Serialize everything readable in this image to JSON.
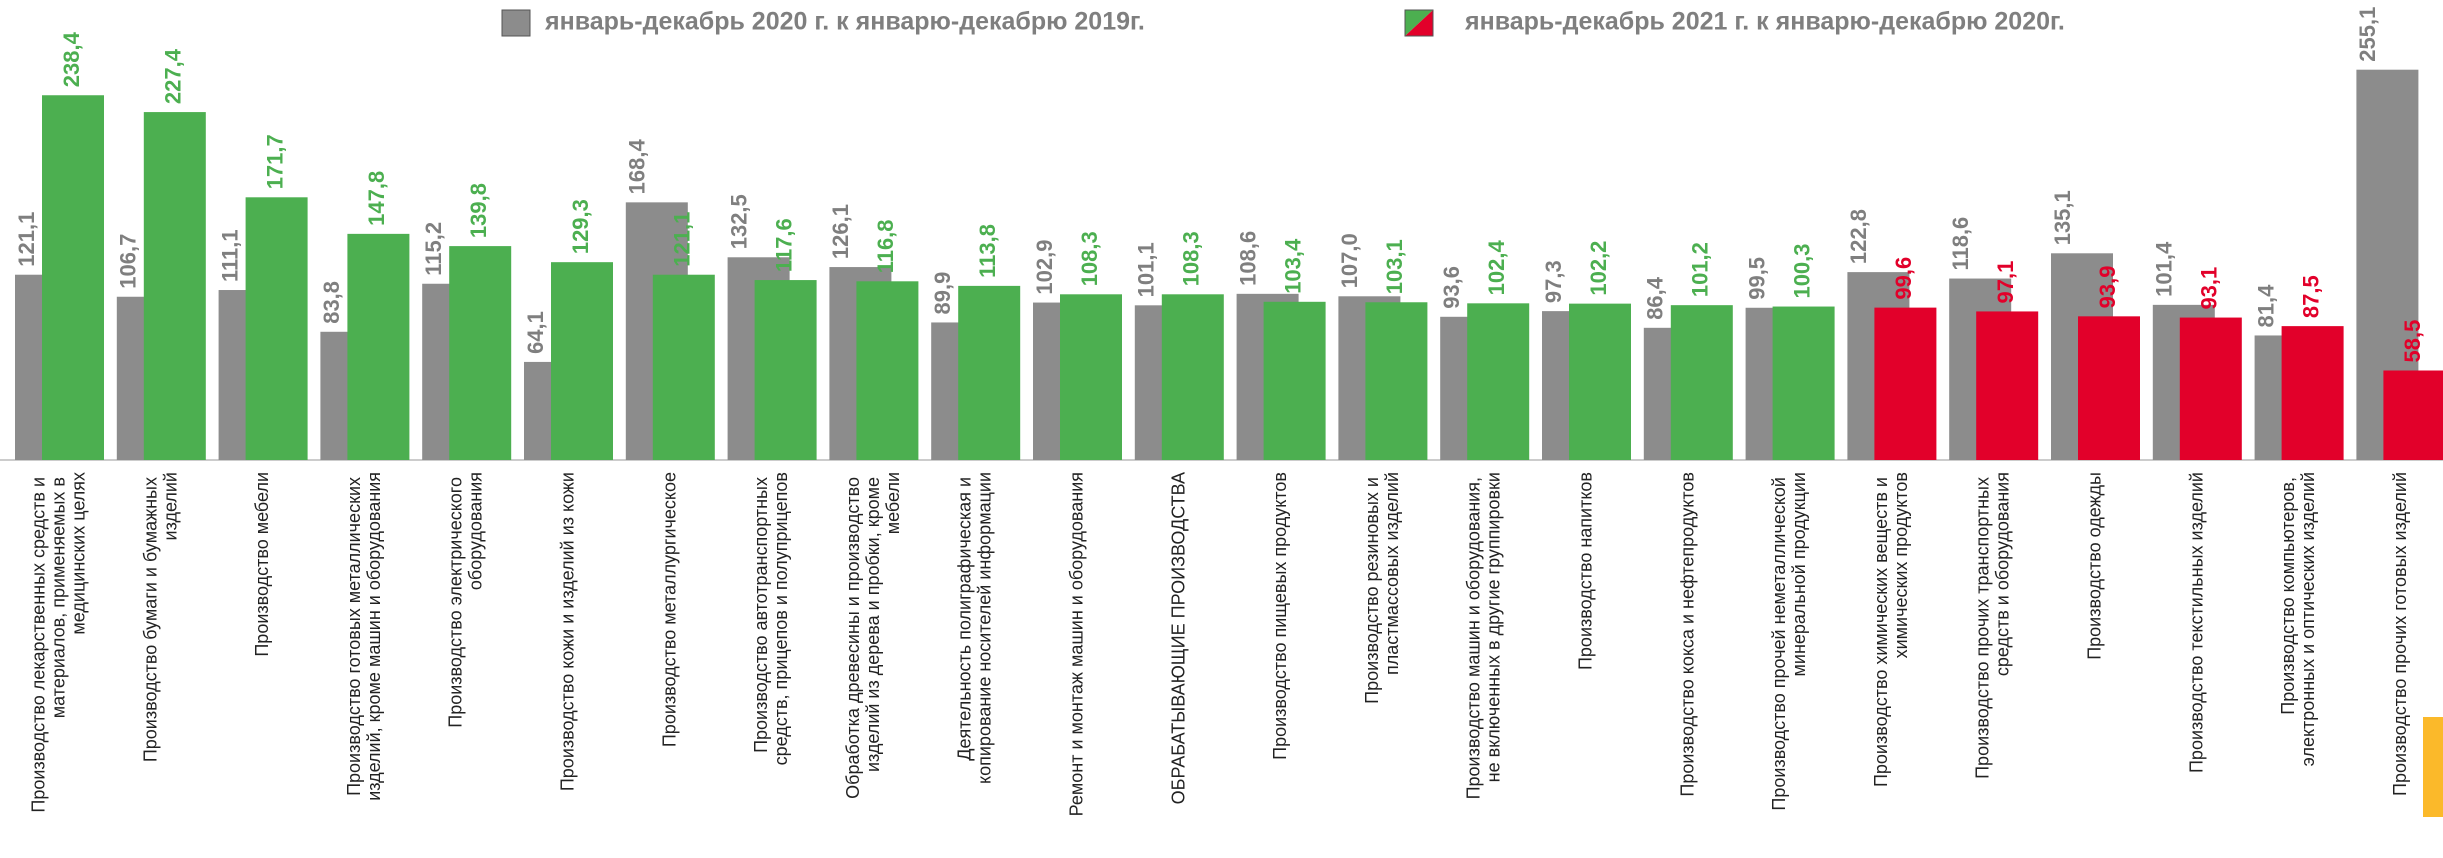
{
  "chart_data": {
    "type": "bar",
    "categories": [
      "Производство лекарственных средств и материалов, применяемых в медицинских целях",
      "Производство бумаги и бумажных изделий",
      "Производство мебели",
      "Производство готовых металлических изделий, кроме машин и оборудования",
      "Производство электрического оборудования",
      "Производство кожи и изделий из кожи",
      "Производство металлургическое",
      "Производство автотранспортных средств, прицепов и полуприцепов",
      "Обработка древесины и производство изделий из дерева и пробки, кроме мебели",
      "Деятельность полиграфическая и копирование носителей информации",
      "Ремонт и монтаж машин и оборудования",
      "ОБРАБАТЫВАЮЩИЕ ПРОИЗВОДСТВА",
      "Производство пищевых продуктов",
      "Производство резиновых и пластмассовых изделий",
      "Производство машин и оборудования, не включенных в другие группировки",
      "Производство напитков",
      "Производство кокса и нефтепродуктов",
      "Производство прочей неметаллической минеральной продукции",
      "Производство химических веществ и химических продуктов",
      "Производство прочих транспортных средств и оборудования",
      "Производство одежды",
      "Производство текстильных изделий",
      "Производство компьютеров, электронных и оптических изделий",
      "Производство прочих готовых изделий"
    ],
    "series": [
      {
        "name": "январь-декабрь 2020 г. к январю-декабрю 2019г.",
        "color": "#8c8c8c",
        "values": [
          121.1,
          106.7,
          111.1,
          83.8,
          115.2,
          64.1,
          168.4,
          132.5,
          126.1,
          89.9,
          102.9,
          101.1,
          108.6,
          107.0,
          93.6,
          97.3,
          86.4,
          99.5,
          122.8,
          118.6,
          135.1,
          101.4,
          81.4,
          255.1
        ],
        "value_labels": [
          "121,1",
          "106,7",
          "111,1",
          "83,8",
          "115,2",
          "64,1",
          "168,4",
          "132,5",
          "126,1",
          "89,9",
          "102,9",
          "101,1",
          "108,6",
          "107,0",
          "93,6",
          "97,3",
          "86,4",
          "99,5",
          "122,8",
          "118,6",
          "135,1",
          "101,4",
          "81,4",
          "255,1"
        ]
      },
      {
        "name": "январь-декабрь 2021 г. к январю-декабрю 2020г.",
        "color": "#4caf50",
        "colors": [
          "#4caf50",
          "#4caf50",
          "#4caf50",
          "#4caf50",
          "#4caf50",
          "#4caf50",
          "#4caf50",
          "#4caf50",
          "#4caf50",
          "#4caf50",
          "#4caf50",
          "#4caf50",
          "#4caf50",
          "#4caf50",
          "#4caf50",
          "#4caf50",
          "#4caf50",
          "#4caf50",
          "#e2002a",
          "#e2002a",
          "#e2002a",
          "#e2002a",
          "#e2002a",
          "#e2002a"
        ],
        "values": [
          238.4,
          227.4,
          171.7,
          147.8,
          139.8,
          129.3,
          121.1,
          117.6,
          116.8,
          113.8,
          108.3,
          108.3,
          103.4,
          103.1,
          102.4,
          102.2,
          101.2,
          100.3,
          99.6,
          97.1,
          93.9,
          93.1,
          87.5,
          58.5
        ],
        "value_labels": [
          "238,4",
          "227,4",
          "171,7",
          "147,8",
          "139,8",
          "129,3",
          "121,1",
          "117,6",
          "116,8",
          "113,8",
          "108,3",
          "108,3",
          "103,4",
          "103,1",
          "102,4",
          "102,2",
          "101,2",
          "100,3",
          "99,6",
          "97,1",
          "93,9",
          "93,1",
          "87,5",
          "58,5"
        ]
      }
    ]
  }
}
